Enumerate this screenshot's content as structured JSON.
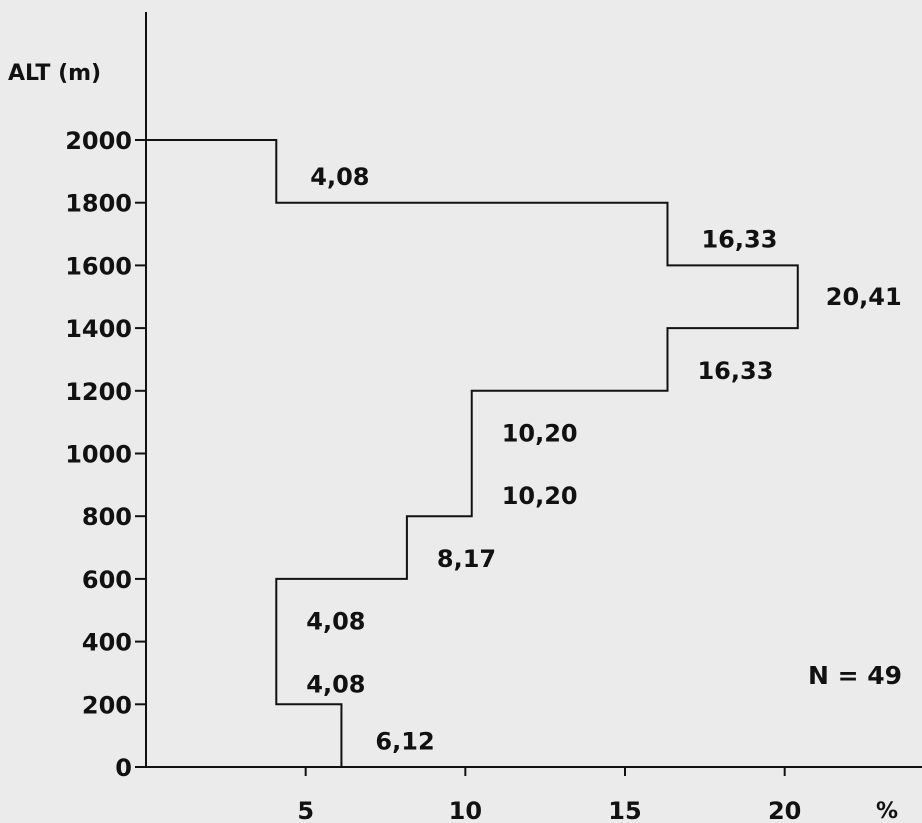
{
  "chart_data": {
    "type": "bar",
    "orientation": "horizontal-step-histogram",
    "ylabel": "ALT (m)",
    "xlabel": "%",
    "yticks": [
      "0",
      "200",
      "400",
      "600",
      "800",
      "1000",
      "1200",
      "1400",
      "1600",
      "1800",
      "2000"
    ],
    "xticks": [
      "5",
      "10",
      "15",
      "20"
    ],
    "xlim": [
      0,
      24.3
    ],
    "ylim": [
      0,
      2000
    ],
    "grid": false,
    "bins": [
      {
        "from": 0,
        "to": 200,
        "value": 6.12,
        "label": "6,12"
      },
      {
        "from": 200,
        "to": 400,
        "value": 4.08,
        "label": "4,08"
      },
      {
        "from": 400,
        "to": 600,
        "value": 4.08,
        "label": "4,08"
      },
      {
        "from": 600,
        "to": 800,
        "value": 8.17,
        "label": "8,17"
      },
      {
        "from": 800,
        "to": 1000,
        "value": 10.2,
        "label": "10,20"
      },
      {
        "from": 1000,
        "to": 1200,
        "value": 10.2,
        "label": "10,20"
      },
      {
        "from": 1200,
        "to": 1400,
        "value": 16.33,
        "label": "16,33"
      },
      {
        "from": 1400,
        "to": 1600,
        "value": 20.41,
        "label": "20,41"
      },
      {
        "from": 1600,
        "to": 1800,
        "value": 16.33,
        "label": "16,33"
      },
      {
        "from": 1800,
        "to": 2000,
        "value": 4.08,
        "label": "4,08"
      }
    ],
    "annotation": "N = 49"
  }
}
